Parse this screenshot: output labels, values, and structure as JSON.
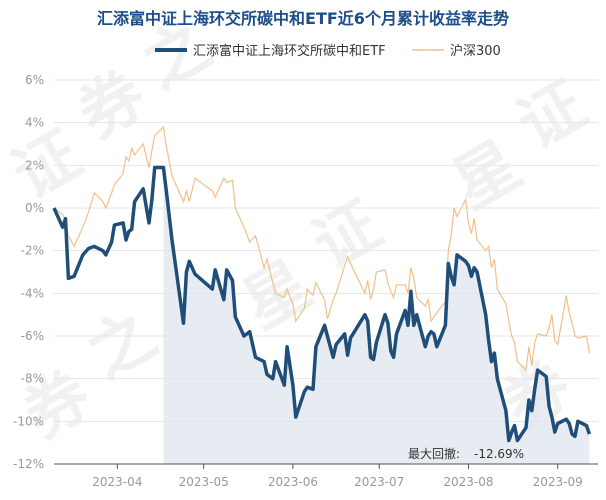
{
  "chart_data": {
    "type": "line",
    "title": "汇添富中证上海环交所碳中和ETF近6个月累计收益率走势",
    "legend_position": "top",
    "grid": true,
    "ylim": [
      -12,
      6
    ],
    "y_ticks": [
      "6%",
      "4%",
      "2%",
      "0%",
      "-2%",
      "-4%",
      "-6%",
      "-8%",
      "-10%",
      "-12%"
    ],
    "x_ticks": [
      "2023-04",
      "2023-05",
      "2023-06",
      "2023-07",
      "2023-08",
      "2023-09"
    ],
    "x_start": "2023-03-10",
    "x_end": "2023-09-15",
    "max_drawdown_label": "最大回撤:",
    "max_drawdown_value": "-12.69%",
    "colors": {
      "etf": "#1f4e79",
      "index": "#f0c08a",
      "drawdown_fill": "#dfe6ee",
      "grid": "#e6e6e6",
      "title": "#1d4e89"
    },
    "watermark": [
      "证",
      "券",
      "之",
      "星"
    ],
    "series": [
      {
        "name": "汇添富中证上海环交所碳中和ETF",
        "color": "#1f4e79",
        "points": [
          [
            "2023-03-10",
            0.0
          ],
          [
            "2023-03-13",
            -0.9
          ],
          [
            "2023-03-14",
            -0.5
          ],
          [
            "2023-03-15",
            -3.3
          ],
          [
            "2023-03-17",
            -3.2
          ],
          [
            "2023-03-20",
            -2.2
          ],
          [
            "2023-03-22",
            -1.9
          ],
          [
            "2023-03-24",
            -1.8
          ],
          [
            "2023-03-27",
            -2.0
          ],
          [
            "2023-03-28",
            -2.2
          ],
          [
            "2023-03-30",
            -1.6
          ],
          [
            "2023-03-31",
            -0.8
          ],
          [
            "2023-04-03",
            -0.7
          ],
          [
            "2023-04-04",
            -1.5
          ],
          [
            "2023-04-05",
            -1.1
          ],
          [
            "2023-04-06",
            -1.0
          ],
          [
            "2023-04-07",
            0.3
          ],
          [
            "2023-04-10",
            0.9
          ],
          [
            "2023-04-12",
            -0.7
          ],
          [
            "2023-04-13",
            0.4
          ],
          [
            "2023-04-14",
            1.9
          ],
          [
            "2023-04-17",
            1.9
          ],
          [
            "2023-04-18",
            0.8
          ],
          [
            "2023-04-20",
            -1.5
          ],
          [
            "2023-04-24",
            -5.4
          ],
          [
            "2023-04-25",
            -3.0
          ],
          [
            "2023-04-26",
            -2.5
          ],
          [
            "2023-04-28",
            -3.1
          ],
          [
            "2023-05-04",
            -3.8
          ],
          [
            "2023-05-05",
            -2.9
          ],
          [
            "2023-05-08",
            -4.3
          ],
          [
            "2023-05-09",
            -2.9
          ],
          [
            "2023-05-11",
            -3.4
          ],
          [
            "2023-05-12",
            -5.1
          ],
          [
            "2023-05-15",
            -6.0
          ],
          [
            "2023-05-17",
            -5.8
          ],
          [
            "2023-05-19",
            -7.0
          ],
          [
            "2023-05-22",
            -7.2
          ],
          [
            "2023-05-23",
            -7.8
          ],
          [
            "2023-05-25",
            -8.0
          ],
          [
            "2023-05-26",
            -7.2
          ],
          [
            "2023-05-29",
            -8.3
          ],
          [
            "2023-05-30",
            -6.5
          ],
          [
            "2023-06-01",
            -8.3
          ],
          [
            "2023-06-02",
            -9.8
          ],
          [
            "2023-06-05",
            -8.6
          ],
          [
            "2023-06-06",
            -8.4
          ],
          [
            "2023-06-08",
            -8.5
          ],
          [
            "2023-06-09",
            -6.5
          ],
          [
            "2023-06-12",
            -5.5
          ],
          [
            "2023-06-13",
            -6.0
          ],
          [
            "2023-06-15",
            -7.0
          ],
          [
            "2023-06-16",
            -6.4
          ],
          [
            "2023-06-19",
            -5.9
          ],
          [
            "2023-06-20",
            -6.9
          ],
          [
            "2023-06-21",
            -6.1
          ],
          [
            "2023-06-26",
            -5.0
          ],
          [
            "2023-06-27",
            -5.3
          ],
          [
            "2023-06-28",
            -7.0
          ],
          [
            "2023-06-29",
            -7.1
          ],
          [
            "2023-06-30",
            -6.3
          ],
          [
            "2023-07-03",
            -5.0
          ],
          [
            "2023-07-04",
            -5.4
          ],
          [
            "2023-07-05",
            -6.7
          ],
          [
            "2023-07-06",
            -7.0
          ],
          [
            "2023-07-07",
            -5.9
          ],
          [
            "2023-07-10",
            -4.8
          ],
          [
            "2023-07-11",
            -5.5
          ],
          [
            "2023-07-12",
            -3.9
          ],
          [
            "2023-07-13",
            -5.5
          ],
          [
            "2023-07-14",
            -5.0
          ],
          [
            "2023-07-17",
            -6.5
          ],
          [
            "2023-07-18",
            -6.0
          ],
          [
            "2023-07-19",
            -5.8
          ],
          [
            "2023-07-20",
            -5.9
          ],
          [
            "2023-07-21",
            -6.5
          ],
          [
            "2023-07-24",
            -5.5
          ],
          [
            "2023-07-25",
            -2.6
          ],
          [
            "2023-07-26",
            -3.2
          ],
          [
            "2023-07-27",
            -3.6
          ],
          [
            "2023-07-28",
            -2.2
          ],
          [
            "2023-07-31",
            -2.5
          ],
          [
            "2023-08-01",
            -2.7
          ],
          [
            "2023-08-02",
            -3.2
          ],
          [
            "2023-08-03",
            -2.8
          ],
          [
            "2023-08-04",
            -3.0
          ],
          [
            "2023-08-07",
            -5.0
          ],
          [
            "2023-08-08",
            -6.2
          ],
          [
            "2023-08-09",
            -7.2
          ],
          [
            "2023-08-10",
            -6.8
          ],
          [
            "2023-08-11",
            -8.0
          ],
          [
            "2023-08-14",
            -9.5
          ],
          [
            "2023-08-15",
            -10.9
          ],
          [
            "2023-08-16",
            -10.5
          ],
          [
            "2023-08-17",
            -10.2
          ],
          [
            "2023-08-18",
            -10.9
          ],
          [
            "2023-08-21",
            -10.3
          ],
          [
            "2023-08-22",
            -9.0
          ],
          [
            "2023-08-23",
            -9.5
          ],
          [
            "2023-08-24",
            -8.5
          ],
          [
            "2023-08-25",
            -7.6
          ],
          [
            "2023-08-28",
            -7.9
          ],
          [
            "2023-08-29",
            -9.3
          ],
          [
            "2023-08-30",
            -9.8
          ],
          [
            "2023-08-31",
            -10.5
          ],
          [
            "2023-09-01",
            -10.1
          ],
          [
            "2023-09-04",
            -9.9
          ],
          [
            "2023-09-05",
            -10.1
          ],
          [
            "2023-09-06",
            -10.6
          ],
          [
            "2023-09-07",
            -10.7
          ],
          [
            "2023-09-08",
            -10.0
          ],
          [
            "2023-09-11",
            -10.2
          ],
          [
            "2023-09-12",
            -10.6
          ]
        ]
      },
      {
        "name": "沪深300",
        "color": "#f0c08a",
        "points": [
          [
            "2023-03-10",
            0.0
          ],
          [
            "2023-03-13",
            -0.3
          ],
          [
            "2023-03-14",
            -0.6
          ],
          [
            "2023-03-15",
            -1.3
          ],
          [
            "2023-03-17",
            -1.8
          ],
          [
            "2023-03-20",
            -0.9
          ],
          [
            "2023-03-22",
            -0.2
          ],
          [
            "2023-03-24",
            0.7
          ],
          [
            "2023-03-27",
            0.3
          ],
          [
            "2023-03-28",
            0.0
          ],
          [
            "2023-03-30",
            0.7
          ],
          [
            "2023-03-31",
            1.1
          ],
          [
            "2023-04-03",
            1.6
          ],
          [
            "2023-04-04",
            2.4
          ],
          [
            "2023-04-05",
            2.2
          ],
          [
            "2023-04-06",
            2.8
          ],
          [
            "2023-04-07",
            2.5
          ],
          [
            "2023-04-10",
            3.0
          ],
          [
            "2023-04-12",
            1.9
          ],
          [
            "2023-04-13",
            2.7
          ],
          [
            "2023-04-14",
            3.4
          ],
          [
            "2023-04-17",
            3.8
          ],
          [
            "2023-04-18",
            2.9
          ],
          [
            "2023-04-20",
            1.5
          ],
          [
            "2023-04-24",
            0.3
          ],
          [
            "2023-04-25",
            0.8
          ],
          [
            "2023-04-26",
            0.3
          ],
          [
            "2023-04-28",
            1.4
          ],
          [
            "2023-05-04",
            0.8
          ],
          [
            "2023-05-05",
            0.5
          ],
          [
            "2023-05-08",
            1.4
          ],
          [
            "2023-05-09",
            1.2
          ],
          [
            "2023-05-11",
            1.3
          ],
          [
            "2023-05-12",
            0.0
          ],
          [
            "2023-05-15",
            -0.9
          ],
          [
            "2023-05-17",
            -1.6
          ],
          [
            "2023-05-19",
            -1.3
          ],
          [
            "2023-05-22",
            -2.8
          ],
          [
            "2023-05-23",
            -2.4
          ],
          [
            "2023-05-25",
            -3.5
          ],
          [
            "2023-05-26",
            -4.0
          ],
          [
            "2023-05-29",
            -4.2
          ],
          [
            "2023-05-30",
            -3.8
          ],
          [
            "2023-06-01",
            -4.5
          ],
          [
            "2023-06-02",
            -5.3
          ],
          [
            "2023-06-05",
            -4.7
          ],
          [
            "2023-06-06",
            -3.8
          ],
          [
            "2023-06-08",
            -4.1
          ],
          [
            "2023-06-09",
            -3.5
          ],
          [
            "2023-06-12",
            -4.3
          ],
          [
            "2023-06-13",
            -5.2
          ],
          [
            "2023-06-15",
            -4.3
          ],
          [
            "2023-06-16",
            -4.0
          ],
          [
            "2023-06-19",
            -2.7
          ],
          [
            "2023-06-20",
            -2.3
          ],
          [
            "2023-06-21",
            -2.6
          ],
          [
            "2023-06-26",
            -4.0
          ],
          [
            "2023-06-27",
            -3.4
          ],
          [
            "2023-06-28",
            -4.3
          ],
          [
            "2023-06-29",
            -3.8
          ],
          [
            "2023-06-30",
            -3.0
          ],
          [
            "2023-07-03",
            -2.9
          ],
          [
            "2023-07-04",
            -3.5
          ],
          [
            "2023-07-05",
            -3.9
          ],
          [
            "2023-07-06",
            -4.2
          ],
          [
            "2023-07-07",
            -3.6
          ],
          [
            "2023-07-10",
            -3.6
          ],
          [
            "2023-07-11",
            -4.0
          ],
          [
            "2023-07-12",
            -2.8
          ],
          [
            "2023-07-13",
            -3.3
          ],
          [
            "2023-07-14",
            -4.2
          ],
          [
            "2023-07-17",
            -4.6
          ],
          [
            "2023-07-18",
            -4.3
          ],
          [
            "2023-07-19",
            -5.3
          ],
          [
            "2023-07-20",
            -5.1
          ],
          [
            "2023-07-21",
            -4.9
          ],
          [
            "2023-07-24",
            -4.4
          ],
          [
            "2023-07-25",
            -2.0
          ],
          [
            "2023-07-26",
            -1.3
          ],
          [
            "2023-07-27",
            0.0
          ],
          [
            "2023-07-28",
            -0.4
          ],
          [
            "2023-07-31",
            0.4
          ],
          [
            "2023-08-01",
            -0.7
          ],
          [
            "2023-08-02",
            -1.2
          ],
          [
            "2023-08-03",
            -0.5
          ],
          [
            "2023-08-04",
            -1.5
          ],
          [
            "2023-08-07",
            -2.0
          ],
          [
            "2023-08-08",
            -1.8
          ],
          [
            "2023-08-09",
            -2.8
          ],
          [
            "2023-08-10",
            -2.4
          ],
          [
            "2023-08-11",
            -3.8
          ],
          [
            "2023-08-14",
            -4.5
          ],
          [
            "2023-08-15",
            -5.3
          ],
          [
            "2023-08-16",
            -6.0
          ],
          [
            "2023-08-17",
            -6.3
          ],
          [
            "2023-08-18",
            -7.2
          ],
          [
            "2023-08-21",
            -7.6
          ],
          [
            "2023-08-22",
            -6.5
          ],
          [
            "2023-08-23",
            -7.4
          ],
          [
            "2023-08-24",
            -6.3
          ],
          [
            "2023-08-25",
            -5.9
          ],
          [
            "2023-08-28",
            -6.0
          ],
          [
            "2023-08-29",
            -5.6
          ],
          [
            "2023-08-30",
            -5.0
          ],
          [
            "2023-08-31",
            -6.2
          ],
          [
            "2023-09-01",
            -6.4
          ],
          [
            "2023-09-04",
            -4.1
          ],
          [
            "2023-09-05",
            -4.9
          ],
          [
            "2023-09-06",
            -5.4
          ],
          [
            "2023-09-07",
            -6.0
          ],
          [
            "2023-09-08",
            -6.1
          ],
          [
            "2023-09-11",
            -6.0
          ],
          [
            "2023-09-12",
            -6.8
          ]
        ]
      }
    ],
    "drawdown": {
      "start": "2023-04-17",
      "end": "2023-09-12"
    }
  }
}
